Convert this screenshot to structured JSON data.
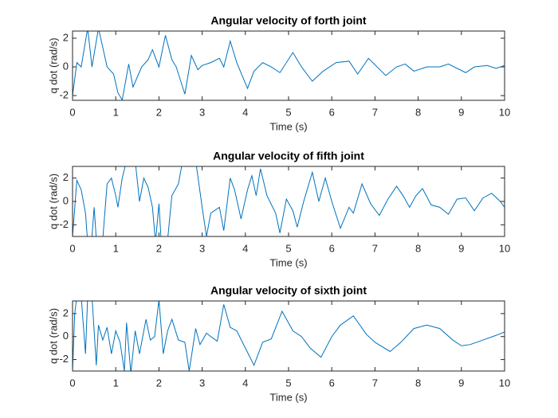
{
  "chart_data": [
    {
      "type": "line",
      "title": "Angular velocity of forth joint",
      "xlabel": "Time (s)",
      "ylabel": "q dot (rad/s)",
      "color": "#0072bd",
      "grid": false,
      "xlim": [
        0,
        10
      ],
      "ylim": [
        -2.33,
        2.5
      ],
      "xticks": [
        0,
        1,
        2,
        3,
        4,
        5,
        6,
        7,
        8,
        9,
        10
      ],
      "yticks": [
        -2,
        0,
        2
      ],
      "x": [
        0,
        0.1,
        0.2,
        0.35,
        0.45,
        0.6,
        0.8,
        0.95,
        1.05,
        1.15,
        1.3,
        1.4,
        1.6,
        1.75,
        1.85,
        2.0,
        2.15,
        2.3,
        2.4,
        2.6,
        2.75,
        2.9,
        3.0,
        3.2,
        3.4,
        3.5,
        3.65,
        3.8,
        4.05,
        4.2,
        4.4,
        4.6,
        4.8,
        5.1,
        5.3,
        5.55,
        5.8,
        6.1,
        6.4,
        6.6,
        6.85,
        7.25,
        7.5,
        7.7,
        7.9,
        8.2,
        8.5,
        8.7,
        9.1,
        9.3,
        9.6,
        9.8,
        10
      ],
      "values": [
        -2,
        0.3,
        0,
        2.7,
        0,
        2.7,
        0,
        -0.5,
        -1.8,
        -2.3,
        0.2,
        -1.4,
        0,
        0.5,
        1.2,
        0,
        2.2,
        0.5,
        0,
        -1.9,
        0.8,
        -0.2,
        0.1,
        0.3,
        0.6,
        0,
        1.8,
        0.3,
        -1.5,
        -0.3,
        0.3,
        0,
        -0.4,
        1.0,
        0,
        -1.0,
        -0.3,
        0.3,
        0.4,
        -0.5,
        0.6,
        -0.6,
        0,
        0.2,
        -0.3,
        0,
        0,
        0.2,
        -0.4,
        0,
        0.1,
        -0.1,
        0.1
      ]
    },
    {
      "type": "line",
      "title": "Angular velocity of fifth joint",
      "xlabel": "Time (s)",
      "ylabel": "q dot (rad/s)",
      "color": "#0072bd",
      "grid": false,
      "xlim": [
        0,
        10
      ],
      "ylim": [
        -3,
        3
      ],
      "xticks": [
        0,
        1,
        2,
        3,
        4,
        5,
        6,
        7,
        8,
        9,
        10
      ],
      "yticks": [
        -2,
        0,
        2
      ],
      "x": [
        0,
        0.1,
        0.2,
        0.3,
        0.35,
        0.45,
        0.5,
        0.55,
        0.7,
        0.8,
        0.9,
        1.0,
        1.05,
        1.15,
        1.25,
        1.45,
        1.55,
        1.65,
        1.75,
        1.85,
        1.92,
        2.0,
        2.05,
        2.2,
        2.3,
        2.45,
        2.55,
        2.65,
        2.75,
        2.85,
        3.0,
        3.1,
        3.2,
        3.4,
        3.5,
        3.65,
        3.75,
        3.9,
        4.05,
        4.15,
        4.25,
        4.35,
        4.5,
        4.7,
        4.8,
        4.95,
        5.1,
        5.2,
        5.35,
        5.55,
        5.7,
        5.85,
        6.0,
        6.2,
        6.4,
        6.5,
        6.7,
        6.9,
        7.1,
        7.3,
        7.5,
        7.65,
        7.8,
        7.95,
        8.1,
        8.3,
        8.5,
        8.7,
        8.9,
        9.1,
        9.3,
        9.5,
        9.7,
        9.9,
        10
      ],
      "values": [
        -3,
        1.8,
        1.0,
        -1,
        -3.5,
        -3,
        -0.5,
        -3.2,
        -3.2,
        1.5,
        2,
        0.5,
        -0.5,
        2,
        3.5,
        3.5,
        0,
        2.0,
        1.2,
        -0.5,
        -3.5,
        -0.2,
        -3.3,
        -3.3,
        0.5,
        1.5,
        3.5,
        3.2,
        3.5,
        3.5,
        -0.5,
        -3.0,
        -1,
        -0.5,
        -2.5,
        2.0,
        1.0,
        -1.5,
        1.0,
        2.2,
        0.5,
        2.8,
        0.5,
        -1.0,
        -2.7,
        0.2,
        -0.8,
        -2.2,
        0,
        2.5,
        0,
        2.0,
        0,
        -2.3,
        -0.5,
        -1.0,
        1.5,
        -0.2,
        -1.2,
        0.2,
        1.3,
        0.5,
        -0.5,
        0.5,
        1.1,
        -0.3,
        -0.5,
        -1.1,
        0.2,
        0.3,
        -0.8,
        0.3,
        0.7,
        0,
        -0.5
      ]
    },
    {
      "type": "line",
      "title": "Angular velocity of sixth joint",
      "xlabel": "Time (s)",
      "ylabel": "q dot (rad/s)",
      "color": "#0072bd",
      "grid": false,
      "xlim": [
        0,
        10
      ],
      "ylim": [
        -3,
        3.1
      ],
      "xticks": [
        0,
        1,
        2,
        3,
        4,
        5,
        6,
        7,
        8,
        9,
        10
      ],
      "yticks": [
        -2,
        0,
        2
      ],
      "x": [
        0,
        0.05,
        0.1,
        0.2,
        0.3,
        0.35,
        0.45,
        0.55,
        0.6,
        0.7,
        0.8,
        0.9,
        1.0,
        1.1,
        1.2,
        1.25,
        1.35,
        1.45,
        1.55,
        1.7,
        1.8,
        1.9,
        2.0,
        2.1,
        2.2,
        2.3,
        2.45,
        2.6,
        2.7,
        2.85,
        2.95,
        3.1,
        3.2,
        3.35,
        3.5,
        3.65,
        3.8,
        4.0,
        4.2,
        4.4,
        4.6,
        4.85,
        5.1,
        5.3,
        5.5,
        5.75,
        6.0,
        6.2,
        6.5,
        6.8,
        7.0,
        7.35,
        7.6,
        7.9,
        8.2,
        8.5,
        8.8,
        9.0,
        9.2,
        9.5,
        9.8,
        10
      ],
      "values": [
        -3,
        2,
        3.5,
        3.5,
        -1.5,
        3.5,
        3.5,
        -2.5,
        1,
        -0.3,
        0.8,
        -1.5,
        0.5,
        -0.5,
        -3.0,
        1.2,
        -3.2,
        0.5,
        -1.5,
        1.5,
        -0.3,
        0,
        3.2,
        -1.5,
        0.5,
        1.5,
        -0.3,
        -0.5,
        -3.0,
        0.7,
        -0.7,
        0.3,
        0,
        -0.4,
        2.8,
        0.8,
        0.5,
        -1.0,
        -2.5,
        -0.5,
        -0.2,
        2.2,
        0.5,
        0,
        -1.0,
        -1.8,
        0,
        1.0,
        1.8,
        0.2,
        -0.5,
        -1.3,
        -0.5,
        0.7,
        1.0,
        0.7,
        -0.3,
        -0.8,
        -0.7,
        -0.3,
        0.1,
        0.4
      ]
    }
  ]
}
